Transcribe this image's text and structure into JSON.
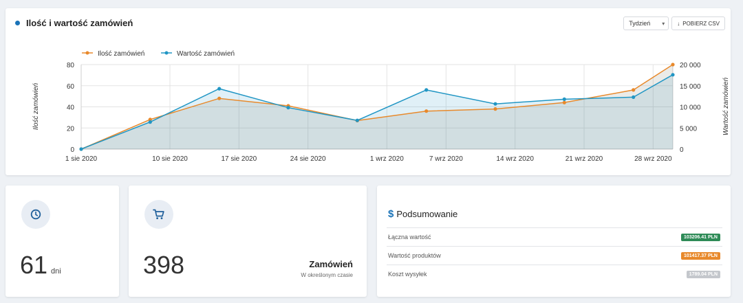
{
  "chart_card": {
    "title": "Ilość i wartość zamówień",
    "period_select": "Tydzień",
    "download_label": "POBIERZ CSV"
  },
  "chart_data": {
    "type": "line",
    "x": [
      "2020-08-01",
      "2020-08-08",
      "2020-08-15",
      "2020-08-22",
      "2020-08-29",
      "2020-09-05",
      "2020-09-12",
      "2020-09-19",
      "2020-09-26",
      "2020-09-30"
    ],
    "x_tick_labels": [
      "1 sie 2020",
      "10 sie 2020",
      "17 sie 2020",
      "24 sie 2020",
      "1 wrz 2020",
      "7 wrz 2020",
      "14 wrz 2020",
      "21 wrz 2020",
      "28 wrz 2020"
    ],
    "series": [
      {
        "name": "Ilość zamówień",
        "axis": "left",
        "color": "#e8892b",
        "values": [
          0,
          28,
          48,
          41,
          27,
          36,
          38,
          44,
          56,
          80
        ]
      },
      {
        "name": "Wartość zamówień",
        "axis": "right",
        "color": "#2196c4",
        "values": [
          0,
          6400,
          14300,
          9800,
          6800,
          14000,
          10700,
          11800,
          12300,
          17600
        ]
      }
    ],
    "ylabel_left": "Ilość zamówień",
    "ylabel_right": "Wartość zamówień",
    "ylim_left": [
      0,
      80
    ],
    "ylim_right": [
      0,
      20000
    ],
    "yticks_left": [
      "0",
      "20",
      "40",
      "60",
      "80"
    ],
    "yticks_right": [
      "0",
      "5 000",
      "10 000",
      "15 000",
      "20 000"
    ],
    "grid": true,
    "legend_placement": "top-left"
  },
  "days_card": {
    "value": "61",
    "unit": "dni"
  },
  "orders_card": {
    "value": "398",
    "label": "Zamówień",
    "sublabel": "W określonym czasie"
  },
  "summary_card": {
    "title": "Podsumowanie",
    "rows": [
      {
        "label": "Łączna wartość",
        "value": "103206.41 PLN",
        "color": "#2e8b57"
      },
      {
        "label": "Wartość produktów",
        "value": "101417.37 PLN",
        "color": "#e8892b"
      },
      {
        "label": "Koszt wysyłek",
        "value": "1789.04 PLN",
        "color": "#c4c7cc"
      }
    ]
  }
}
